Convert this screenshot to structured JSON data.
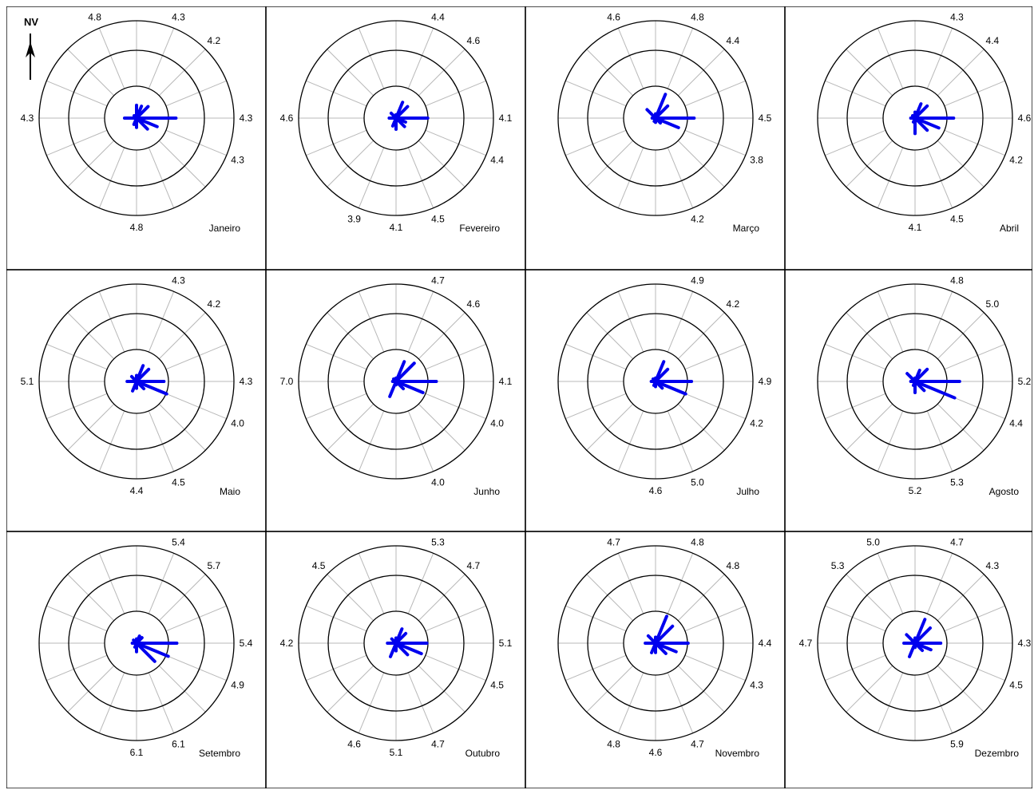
{
  "north_label": "NV",
  "colors": {
    "petal": "#0000ee",
    "ring": "#000000",
    "spoke": "#b8b8b8",
    "border": "#000000"
  },
  "chart_data": [
    {
      "type": "wind-rose",
      "month": "Janeiro",
      "speed_labels": [
        "4.3",
        "4.2",
        "4.3",
        "4.3",
        "",
        "4.8",
        "",
        "4.3",
        "",
        "4.8"
      ],
      "frequencies": [
        0.15,
        0.15,
        0.19,
        0.46,
        0.26,
        0.18,
        0.11,
        0.08,
        0.14,
        0.04
      ]
    },
    {
      "type": "wind-rose",
      "month": "Fevereiro",
      "speed_labels": [
        "4.4",
        "4.6",
        "4.1",
        "4.4",
        "4.5",
        "4.1",
        "3.9",
        "4.6",
        "",
        ""
      ],
      "frequencies": [
        0.04,
        0.2,
        0.19,
        0.37,
        0.12,
        0.14,
        0.13,
        0.1,
        0.08,
        0.08
      ]
    },
    {
      "type": "wind-rose",
      "month": "Março",
      "speed_labels": [
        "4.8",
        "4.4",
        "4.5",
        "3.8",
        "4.2",
        "",
        "",
        "",
        "",
        "4.6"
      ],
      "frequencies": [
        0.05,
        0.3,
        0.2,
        0.45,
        0.29,
        0.08,
        0.05,
        0.04,
        0.04,
        0.14
      ]
    },
    {
      "type": "wind-rose",
      "month": "Abril",
      "speed_labels": [
        "4.3",
        "4.4",
        "4.6",
        "4.2",
        "4.5",
        "4.1",
        "",
        "",
        "",
        ""
      ],
      "frequencies": [
        0.07,
        0.18,
        0.2,
        0.45,
        0.3,
        0.2,
        0.18,
        0.05,
        0.05,
        0.04
      ]
    },
    {
      "type": "wind-rose",
      "month": "Maio",
      "speed_labels": [
        "4.3",
        "4.2",
        "4.3",
        "4.0",
        "4.5",
        "4.4",
        "",
        "5.1",
        "",
        ""
      ],
      "frequencies": [
        0.07,
        0.2,
        0.2,
        0.32,
        0.38,
        0.12,
        0.08,
        0.12,
        0.11,
        0.08
      ]
    },
    {
      "type": "wind-rose",
      "month": "Junho",
      "speed_labels": [
        "4.7",
        "4.6",
        "4.1",
        "4.0",
        "4.0",
        "",
        "",
        "7.0",
        "",
        ""
      ],
      "frequencies": [
        0.04,
        0.25,
        0.3,
        0.47,
        0.34,
        0.12,
        0.04,
        0.19,
        0.04,
        0.04
      ]
    },
    {
      "type": "wind-rose",
      "month": "Julho",
      "speed_labels": [
        "4.9",
        "4.2",
        "4.9",
        "4.2",
        "5.0",
        "4.6",
        "",
        "",
        "",
        ""
      ],
      "frequencies": [
        0.04,
        0.25,
        0.2,
        0.42,
        0.38,
        0.11,
        0.06,
        0.05,
        0.05,
        0.04
      ]
    },
    {
      "type": "wind-rose",
      "month": "Agosto",
      "speed_labels": [
        "4.8",
        "5.0",
        "5.2",
        "4.4",
        "5.3",
        "5.2",
        "",
        "",
        "",
        ""
      ],
      "frequencies": [
        0.04,
        0.14,
        0.2,
        0.52,
        0.5,
        0.15,
        0.13,
        0.05,
        0.05,
        0.13
      ]
    },
    {
      "type": "wind-rose",
      "month": "Setembro",
      "speed_labels": [
        "5.4",
        "5.7",
        "5.4",
        "4.9",
        "6.1",
        "6.1",
        "",
        "",
        "",
        ""
      ],
      "frequencies": [
        0.05,
        0.09,
        0.09,
        0.47,
        0.4,
        0.3,
        0.1,
        0.05,
        0.05,
        0.05
      ]
    },
    {
      "type": "wind-rose",
      "month": "Outubro",
      "speed_labels": [
        "5.3",
        "4.7",
        "5.1",
        "4.5",
        "4.7",
        "5.1",
        "4.6",
        "4.2",
        "4.5",
        ""
      ],
      "frequencies": [
        0.06,
        0.18,
        0.16,
        0.36,
        0.32,
        0.19,
        0.09,
        0.17,
        0.1,
        0.07
      ]
    },
    {
      "type": "wind-rose",
      "month": "Novembro",
      "speed_labels": [
        "4.8",
        "4.8",
        "4.4",
        "4.3",
        "4.7",
        "4.6",
        "4.8",
        "",
        "",
        "4.7"
      ],
      "frequencies": [
        0.07,
        0.34,
        0.28,
        0.38,
        0.26,
        0.17,
        0.11,
        0.12,
        0.12,
        0.12
      ]
    },
    {
      "type": "wind-rose",
      "month": "Dezembro",
      "speed_labels": [
        "4.7",
        "4.3",
        "4.3",
        "4.5",
        "5.9",
        "",
        "",
        "4.7",
        "5.3",
        "5.0"
      ],
      "frequencies": [
        0.06,
        0.3,
        0.25,
        0.3,
        0.2,
        0.12,
        0.05,
        0.17,
        0.13,
        0.14
      ]
    }
  ]
}
